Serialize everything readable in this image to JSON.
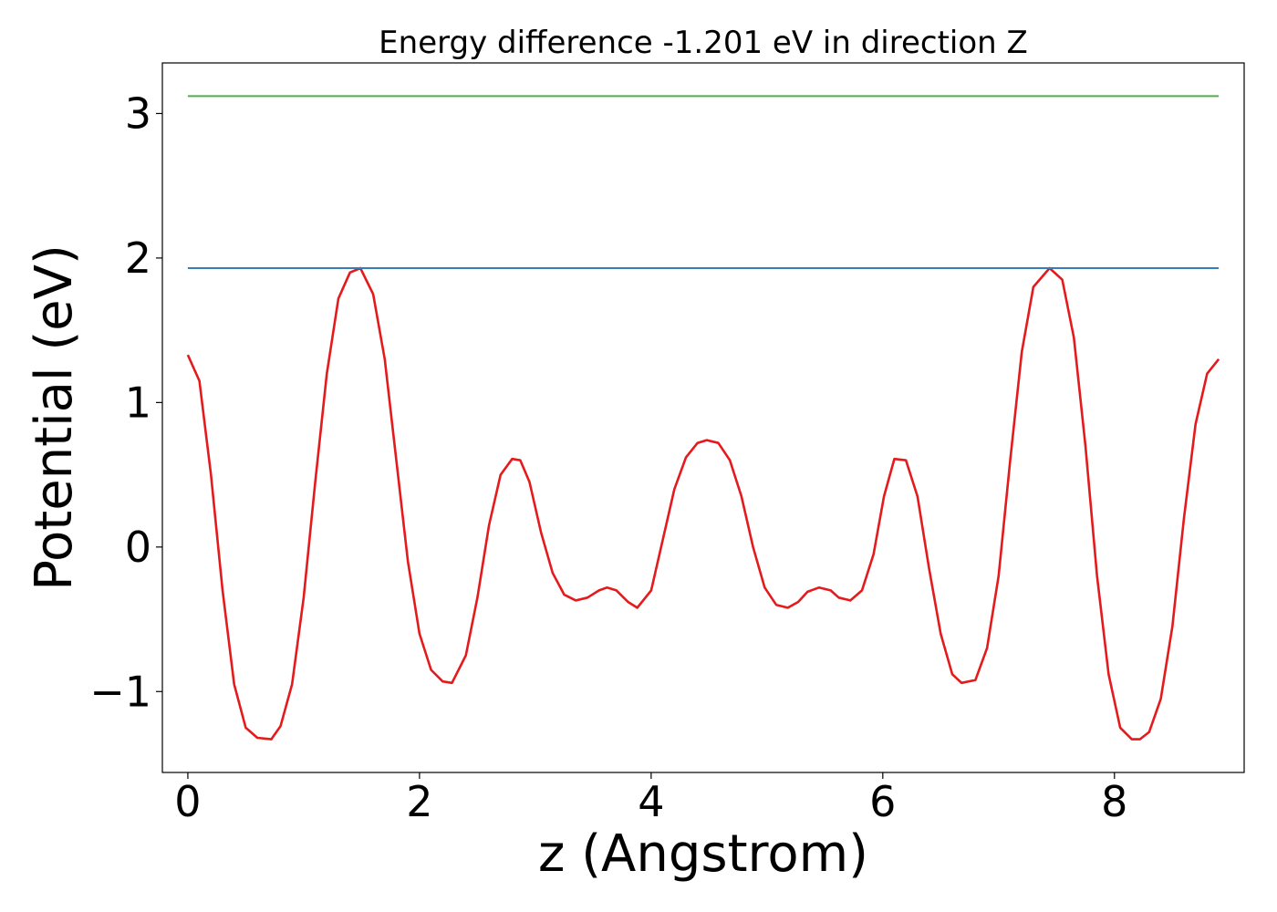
{
  "chart_data": {
    "type": "line",
    "title": "Energy difference -1.201 eV in direction Z",
    "xlabel": "z (Angstrom)",
    "ylabel": "Potential (eV)",
    "xlim": [
      -0.22,
      9.12
    ],
    "ylim": [
      -1.56,
      3.35
    ],
    "xticks": [
      0,
      2,
      4,
      6,
      8
    ],
    "xtick_labels": [
      "0",
      "2",
      "4",
      "6",
      "8"
    ],
    "yticks": [
      -1,
      0,
      1,
      2,
      3
    ],
    "ytick_labels": [
      "−1",
      "0",
      "1",
      "2",
      "3"
    ],
    "grid": false,
    "legend": "none",
    "series": [
      {
        "color": "#e41a1c",
        "x": [
          0.0,
          0.1,
          0.2,
          0.3,
          0.4,
          0.5,
          0.6,
          0.72,
          0.8,
          0.9,
          1.0,
          1.1,
          1.2,
          1.3,
          1.4,
          1.49,
          1.6,
          1.7,
          1.8,
          1.9,
          2.0,
          2.1,
          2.2,
          2.28,
          2.4,
          2.5,
          2.6,
          2.7,
          2.8,
          2.87,
          2.95,
          3.05,
          3.15,
          3.25,
          3.35,
          3.45,
          3.55,
          3.62,
          3.7,
          3.8,
          3.88,
          4.0,
          4.1,
          4.2,
          4.3,
          4.4,
          4.48,
          4.58,
          4.68,
          4.78,
          4.88,
          4.98,
          5.08,
          5.18,
          5.27,
          5.35,
          5.45,
          5.55,
          5.62,
          5.72,
          5.82,
          5.92,
          6.01,
          6.1,
          6.2,
          6.3,
          6.4,
          6.5,
          6.6,
          6.68,
          6.8,
          6.9,
          7.0,
          7.1,
          7.2,
          7.3,
          7.44,
          7.55,
          7.65,
          7.75,
          7.85,
          7.95,
          8.05,
          8.15,
          8.22,
          8.3,
          8.4,
          8.5,
          8.6,
          8.7,
          8.8,
          8.9
        ],
        "y": [
          1.33,
          1.15,
          0.5,
          -0.3,
          -0.95,
          -1.25,
          -1.32,
          -1.33,
          -1.24,
          -0.95,
          -0.35,
          0.45,
          1.2,
          1.72,
          1.9,
          1.93,
          1.75,
          1.3,
          0.6,
          -0.1,
          -0.6,
          -0.85,
          -0.93,
          -0.94,
          -0.75,
          -0.35,
          0.15,
          0.5,
          0.61,
          0.6,
          0.45,
          0.1,
          -0.18,
          -0.33,
          -0.37,
          -0.35,
          -0.3,
          -0.28,
          -0.3,
          -0.38,
          -0.42,
          -0.3,
          0.05,
          0.4,
          0.62,
          0.72,
          0.74,
          0.72,
          0.6,
          0.35,
          0.0,
          -0.28,
          -0.4,
          -0.42,
          -0.38,
          -0.31,
          -0.28,
          -0.3,
          -0.35,
          -0.37,
          -0.3,
          -0.05,
          0.35,
          0.61,
          0.6,
          0.35,
          -0.15,
          -0.6,
          -0.88,
          -0.94,
          -0.92,
          -0.7,
          -0.2,
          0.6,
          1.35,
          1.8,
          1.93,
          1.85,
          1.45,
          0.7,
          -0.2,
          -0.88,
          -1.25,
          -1.33,
          -1.33,
          -1.28,
          -1.05,
          -0.55,
          0.2,
          0.85,
          1.2,
          1.3
        ]
      },
      {
        "color": "#377eb8",
        "x": [
          0.0,
          8.9
        ],
        "y": [
          1.93,
          1.93
        ]
      },
      {
        "color": "#4daf4a",
        "x": [
          0.0,
          8.9
        ],
        "y": [
          3.12,
          3.12
        ]
      }
    ]
  }
}
